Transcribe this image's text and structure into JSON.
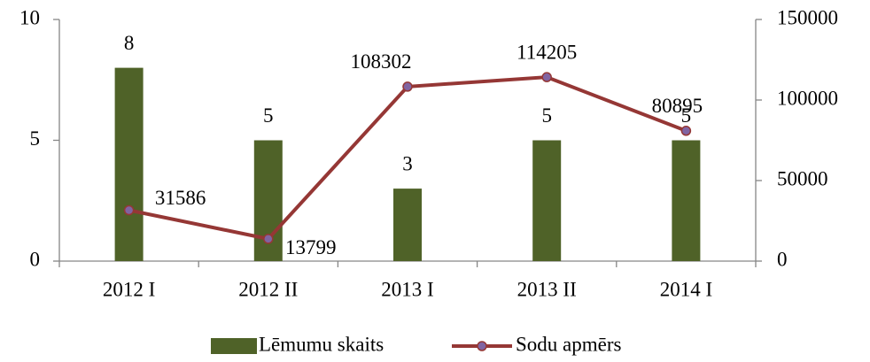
{
  "chart_data": {
    "type": "bar",
    "categories": [
      "2012 I",
      "2012 II",
      "2013 I",
      "2013 II",
      "2014 I"
    ],
    "series": [
      {
        "name": "Lēmumu skaits",
        "type": "bar",
        "color": "#4f6228",
        "values": [
          8,
          5,
          3,
          5,
          5
        ]
      },
      {
        "name": "Sodu apmērs",
        "type": "line",
        "axis": "y2",
        "color": "#953735",
        "marker_color": "#8064a2",
        "values": [
          31586,
          13799,
          108302,
          114205,
          80895
        ]
      }
    ],
    "ylim": [
      0,
      10
    ],
    "yticks": [
      0,
      5,
      10
    ],
    "y2lim": [
      0,
      150000
    ],
    "y2ticks": [
      0,
      50000,
      100000,
      150000
    ],
    "legend": "bottom"
  }
}
